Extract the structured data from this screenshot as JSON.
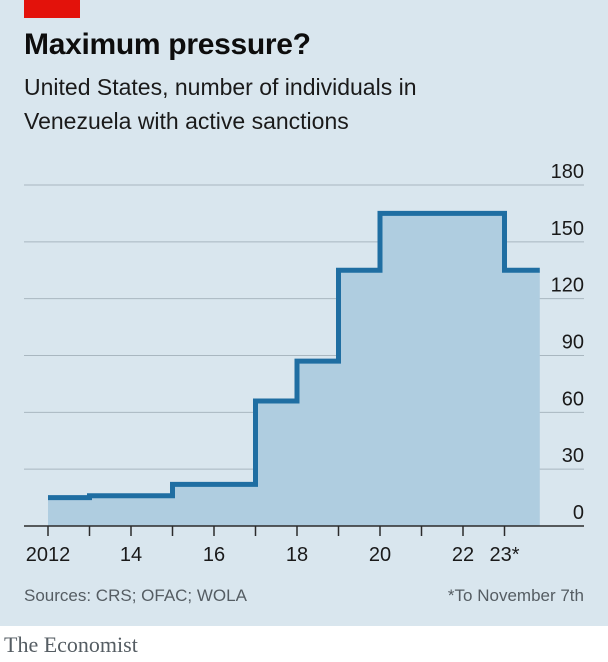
{
  "header": {
    "title": "Maximum pressure?",
    "subtitle": "United States, number of individuals in Venezuela with active sanctions"
  },
  "footer": {
    "source": "Sources: CRS; OFAC; WOLA",
    "footnote": "*To November 7th",
    "brand": "The Economist"
  },
  "colors": {
    "brand_red": "#e3120b",
    "line": "#1f6ea2",
    "fill": "#afcde0",
    "background": "#d9e6ee",
    "grid": "#a9b7c0"
  },
  "chart_data": {
    "type": "area",
    "step": true,
    "title": "Maximum pressure?",
    "subtitle": "United States, number of individuals in Venezuela with active sanctions",
    "xlabel": "",
    "ylabel": "",
    "y_axis_side": "right",
    "grid": true,
    "xlim": [
      2012,
      2023.85
    ],
    "ylim": [
      0,
      180
    ],
    "y_ticks": [
      0,
      30,
      60,
      90,
      120,
      150,
      180
    ],
    "x_tick_values": [
      2012,
      2014,
      2016,
      2018,
      2020,
      2022,
      2023
    ],
    "x_tick_labels": [
      "2012",
      "14",
      "16",
      "18",
      "20",
      "22",
      "23*"
    ],
    "x": [
      2012,
      2013,
      2015,
      2017,
      2018,
      2019,
      2020,
      2023,
      2023.85
    ],
    "values": [
      15,
      16,
      22,
      66,
      87,
      135,
      165,
      135,
      135
    ]
  }
}
